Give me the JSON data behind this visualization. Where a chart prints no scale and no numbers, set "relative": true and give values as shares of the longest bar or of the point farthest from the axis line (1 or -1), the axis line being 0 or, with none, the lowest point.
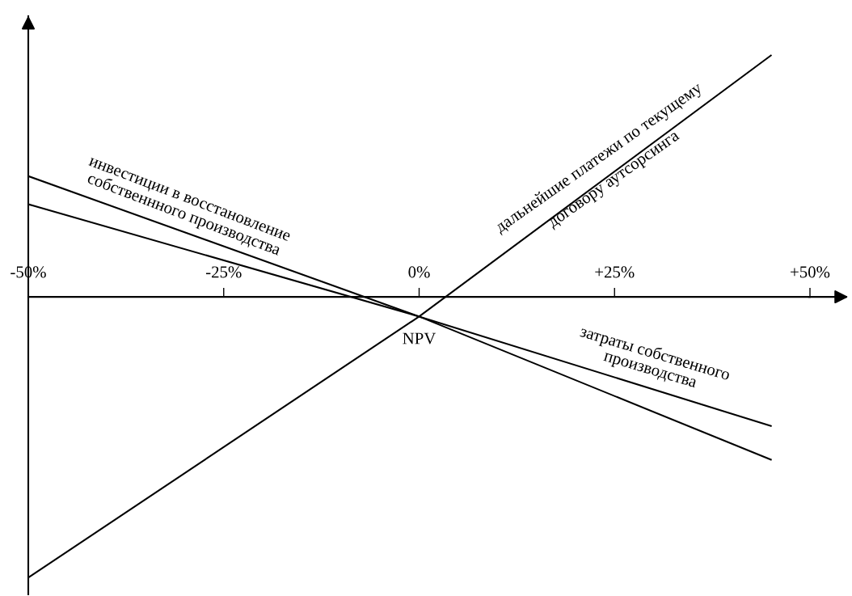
{
  "chart_data": {
    "type": "line",
    "relative": true,
    "xlim": [
      -50,
      50
    ],
    "xticks": [
      {
        "value": -50,
        "label": "-50%"
      },
      {
        "value": -25,
        "label": "-25%"
      },
      {
        "value": 0,
        "label": "0%"
      },
      {
        "value": 25,
        "label": "+25%"
      },
      {
        "value": 50,
        "label": "+50%"
      }
    ],
    "x": [
      -50,
      0,
      45
    ],
    "series": [
      {
        "name": "инвестиции в восстановление\nсобственнного производства",
        "color": "#000000",
        "values": [
          0.43,
          -0.07,
          -0.58
        ]
      },
      {
        "name": "затраты собственного\nпроизводства",
        "color": "#000000",
        "values": [
          0.33,
          -0.07,
          -0.46
        ]
      },
      {
        "name": "дальнейшие платежи по текущему\nдоговору аутсорсинга",
        "color": "#000000",
        "values": [
          -1,
          -0.07,
          0.86
        ]
      }
    ],
    "annotations": [
      {
        "text": "NPV",
        "x": 0,
        "y": -0.07
      }
    ],
    "line_style": "solid"
  }
}
